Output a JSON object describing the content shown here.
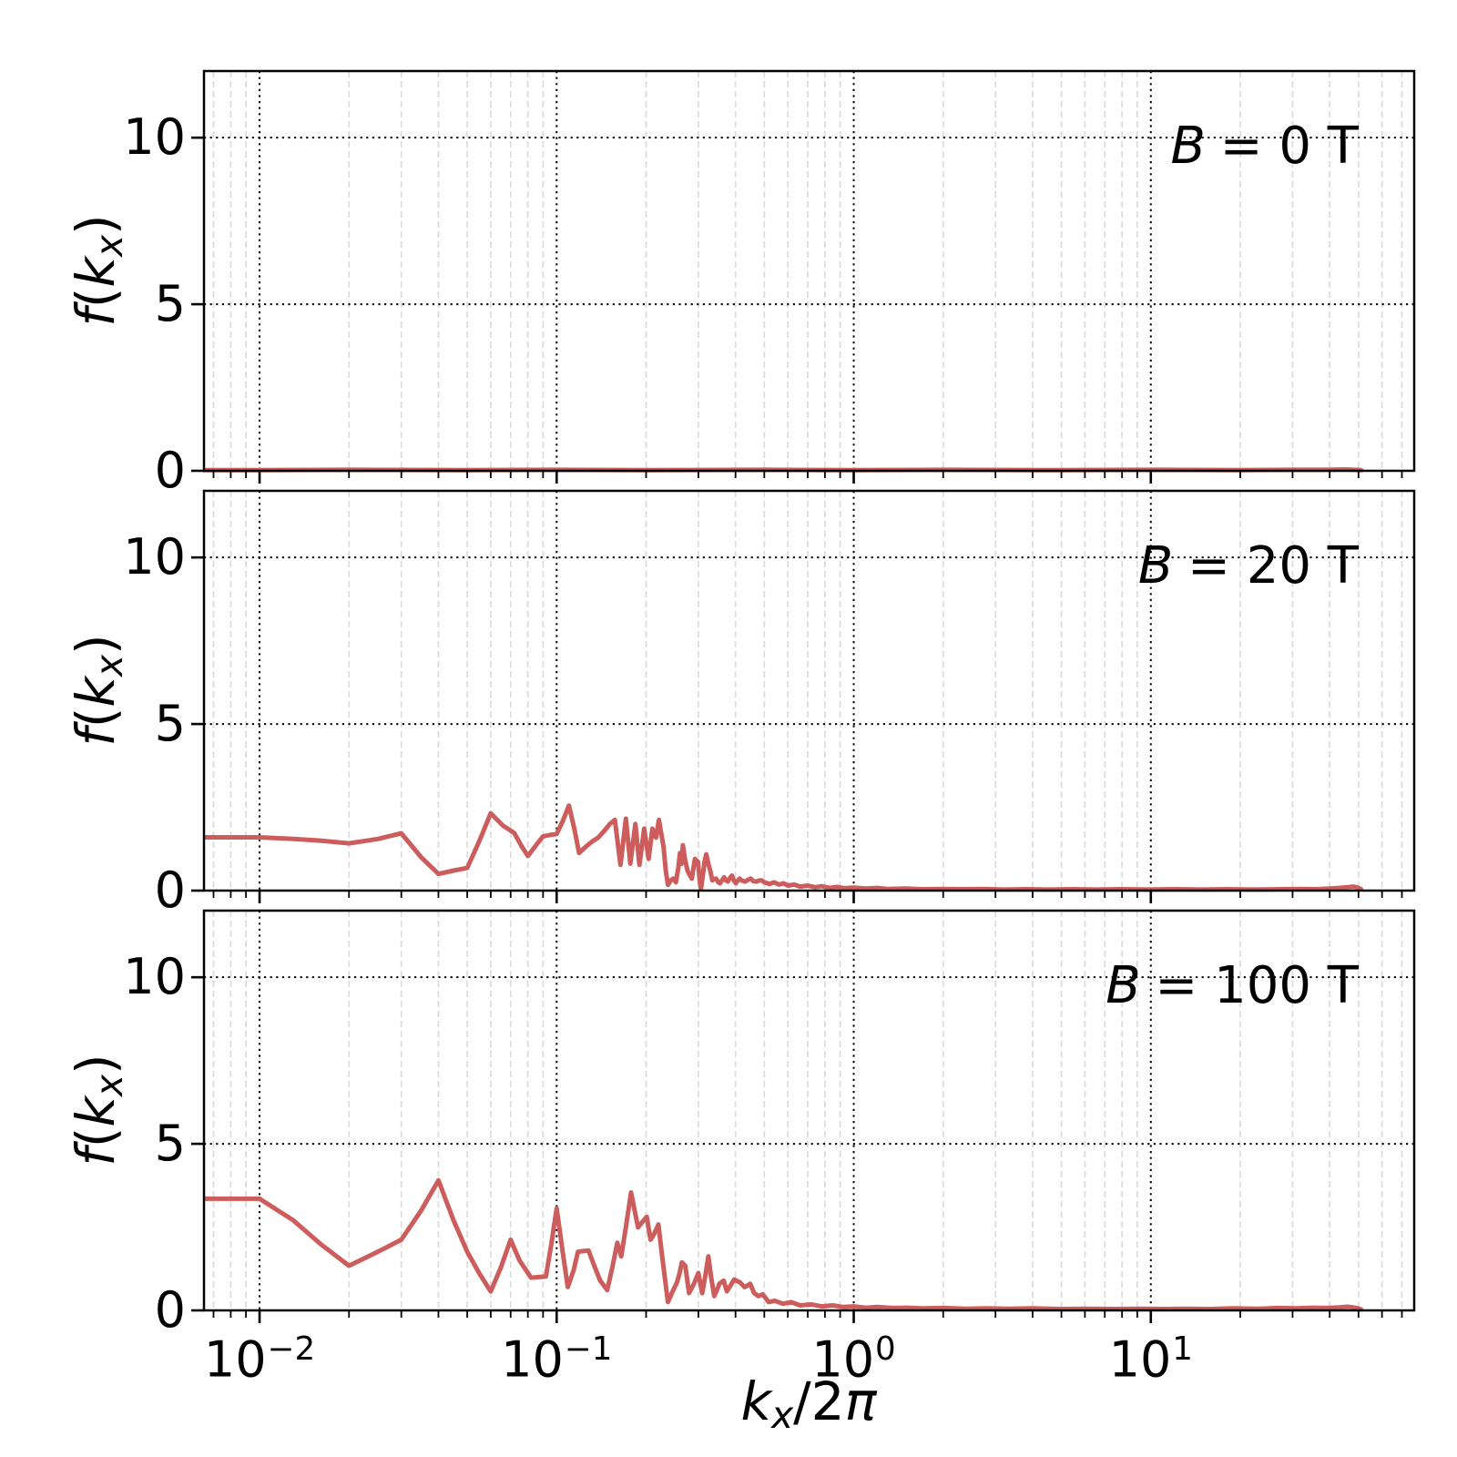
{
  "figure": {
    "background": "#ffffff",
    "axes_color": "#000000",
    "major_grid_color": "#000000",
    "minor_grid_color": "#dcdcdc",
    "line_color": "#cd5c5c"
  },
  "chart_data": {
    "type": "line",
    "title": "",
    "xlabel": "kx/2π",
    "xlabel_parts": {
      "k": "k",
      "sub": "x",
      "slash2": "/2",
      "pi": "π"
    },
    "ylabel": "f(kx)",
    "x_scale": "log",
    "xlim": [
      0.0065,
      77
    ],
    "ylim": [
      0,
      12
    ],
    "grid": {
      "major": "dotted",
      "minor": "dashed-light",
      "enabled": true
    },
    "legend_position": "none",
    "line_color": "#cd5c5c",
    "xticks": [
      {
        "base": "10",
        "exp": "−2",
        "value": 0.01
      },
      {
        "base": "10",
        "exp": "−1",
        "value": 0.1
      },
      {
        "base": "10",
        "exp": "0",
        "value": 1
      },
      {
        "base": "10",
        "exp": "1",
        "value": 10
      }
    ],
    "yticks": [
      {
        "label": "0",
        "value": 0
      },
      {
        "label": "5",
        "value": 5
      },
      {
        "label": "10",
        "value": 10
      }
    ],
    "panels": [
      {
        "label": "B = 0 T",
        "label_parts": {
          "var": "B",
          "rest": "= 0 T"
        },
        "ylabel_parts": {
          "f": "f",
          "open": "(",
          "k": "k",
          "sub": "x",
          "close": ")"
        },
        "points": [
          [
            0.0065,
            0.02
          ],
          [
            0.01,
            0.02
          ],
          [
            0.02,
            0.03
          ],
          [
            0.05,
            0.02
          ],
          [
            0.1,
            0.03
          ],
          [
            0.2,
            0.02
          ],
          [
            0.5,
            0.03
          ],
          [
            1,
            0.02
          ],
          [
            2,
            0.03
          ],
          [
            5,
            0.02
          ],
          [
            10,
            0.03
          ],
          [
            20,
            0.02
          ],
          [
            30,
            0.03
          ],
          [
            40,
            0.03
          ],
          [
            45,
            0.04
          ],
          [
            51,
            0.02
          ]
        ]
      },
      {
        "label": "B = 20 T",
        "label_parts": {
          "var": "B",
          "rest": "= 20 T"
        },
        "ylabel_parts": {
          "f": "f",
          "open": "(",
          "k": "k",
          "sub": "x",
          "close": ")"
        },
        "points": [
          [
            0.0065,
            1.6
          ],
          [
            0.008,
            1.6
          ],
          [
            0.01,
            1.6
          ],
          [
            0.013,
            1.55
          ],
          [
            0.016,
            1.5
          ],
          [
            0.02,
            1.42
          ],
          [
            0.025,
            1.55
          ],
          [
            0.03,
            1.72
          ],
          [
            0.035,
            1.0
          ],
          [
            0.04,
            0.5
          ],
          [
            0.045,
            0.6
          ],
          [
            0.05,
            0.68
          ],
          [
            0.055,
            1.5
          ],
          [
            0.06,
            2.32
          ],
          [
            0.066,
            1.95
          ],
          [
            0.072,
            1.73
          ],
          [
            0.076,
            1.35
          ],
          [
            0.08,
            1.04
          ],
          [
            0.085,
            1.35
          ],
          [
            0.09,
            1.63
          ],
          [
            0.095,
            1.67
          ],
          [
            0.1,
            1.7
          ],
          [
            0.105,
            2.1
          ],
          [
            0.11,
            2.55
          ],
          [
            0.115,
            1.8
          ],
          [
            0.119,
            1.13
          ],
          [
            0.123,
            1.25
          ],
          [
            0.127,
            1.36
          ],
          [
            0.132,
            1.48
          ],
          [
            0.138,
            1.59
          ],
          [
            0.145,
            1.8
          ],
          [
            0.151,
            2.0
          ],
          [
            0.157,
            2.12
          ],
          [
            0.164,
            0.77
          ],
          [
            0.171,
            2.16
          ],
          [
            0.177,
            0.81
          ],
          [
            0.184,
            2.0
          ],
          [
            0.19,
            0.77
          ],
          [
            0.197,
            1.86
          ],
          [
            0.204,
            0.95
          ],
          [
            0.21,
            1.86
          ],
          [
            0.216,
            1.59
          ],
          [
            0.221,
            2.12
          ],
          [
            0.225,
            1.7
          ],
          [
            0.229,
            1.31
          ],
          [
            0.233,
            0.6
          ],
          [
            0.237,
            0.17
          ],
          [
            0.242,
            0.3
          ],
          [
            0.247,
            0.36
          ],
          [
            0.252,
            0.25
          ],
          [
            0.257,
            0.7
          ],
          [
            0.26,
            1.13
          ],
          [
            0.263,
            0.8
          ],
          [
            0.266,
            1.36
          ],
          [
            0.271,
            0.9
          ],
          [
            0.276,
            0.59
          ],
          [
            0.281,
            0.45
          ],
          [
            0.285,
            0.36
          ],
          [
            0.289,
            0.7
          ],
          [
            0.292,
            0.95
          ],
          [
            0.296,
            0.9
          ],
          [
            0.299,
            0.86
          ],
          [
            0.303,
            0.3
          ],
          [
            0.306,
            0.05
          ],
          [
            0.311,
            0.5
          ],
          [
            0.315,
            0.9
          ],
          [
            0.319,
            1.09
          ],
          [
            0.324,
            0.8
          ],
          [
            0.329,
            0.59
          ],
          [
            0.334,
            0.31
          ],
          [
            0.339,
            0.35
          ],
          [
            0.344,
            0.36
          ],
          [
            0.35,
            0.25
          ],
          [
            0.355,
            0.22
          ],
          [
            0.361,
            0.32
          ],
          [
            0.366,
            0.4
          ],
          [
            0.372,
            0.3
          ],
          [
            0.377,
            0.27
          ],
          [
            0.383,
            0.38
          ],
          [
            0.389,
            0.45
          ],
          [
            0.395,
            0.3
          ],
          [
            0.401,
            0.22
          ],
          [
            0.407,
            0.3
          ],
          [
            0.413,
            0.36
          ],
          [
            0.42,
            0.3
          ],
          [
            0.431,
            0.27
          ],
          [
            0.44,
            0.32
          ],
          [
            0.45,
            0.36
          ],
          [
            0.46,
            0.28
          ],
          [
            0.47,
            0.27
          ],
          [
            0.48,
            0.3
          ],
          [
            0.49,
            0.31
          ],
          [
            0.5,
            0.25
          ],
          [
            0.52,
            0.2
          ],
          [
            0.54,
            0.25
          ],
          [
            0.56,
            0.18
          ],
          [
            0.58,
            0.22
          ],
          [
            0.6,
            0.15
          ],
          [
            0.63,
            0.18
          ],
          [
            0.66,
            0.12
          ],
          [
            0.7,
            0.15
          ],
          [
            0.74,
            0.1
          ],
          [
            0.78,
            0.13
          ],
          [
            0.83,
            0.08
          ],
          [
            0.88,
            0.11
          ],
          [
            0.93,
            0.07
          ],
          [
            1.0,
            0.09
          ],
          [
            1.1,
            0.06
          ],
          [
            1.2,
            0.08
          ],
          [
            1.3,
            0.05
          ],
          [
            1.5,
            0.06
          ],
          [
            1.7,
            0.04
          ],
          [
            2.0,
            0.05
          ],
          [
            2.3,
            0.04
          ],
          [
            2.7,
            0.05
          ],
          [
            3.2,
            0.03
          ],
          [
            3.8,
            0.04
          ],
          [
            4.5,
            0.03
          ],
          [
            5.5,
            0.04
          ],
          [
            6.5,
            0.03
          ],
          [
            8,
            0.04
          ],
          [
            10,
            0.03
          ],
          [
            12,
            0.04
          ],
          [
            15,
            0.03
          ],
          [
            18,
            0.04
          ],
          [
            22,
            0.03
          ],
          [
            27,
            0.04
          ],
          [
            32,
            0.05
          ],
          [
            36,
            0.04
          ],
          [
            40,
            0.06
          ],
          [
            43,
            0.08
          ],
          [
            46,
            0.1
          ],
          [
            48,
            0.12
          ],
          [
            50,
            0.08
          ],
          [
            51,
            0.04
          ]
        ]
      },
      {
        "label": "B = 100 T",
        "label_parts": {
          "var": "B",
          "rest": "= 100 T"
        },
        "ylabel_parts": {
          "f": "f",
          "open": "(",
          "k": "k",
          "sub": "x",
          "close": ")"
        },
        "points": [
          [
            0.0065,
            3.35
          ],
          [
            0.008,
            3.35
          ],
          [
            0.01,
            3.35
          ],
          [
            0.013,
            2.7
          ],
          [
            0.016,
            2.0
          ],
          [
            0.02,
            1.34
          ],
          [
            0.025,
            1.76
          ],
          [
            0.03,
            2.12
          ],
          [
            0.035,
            3.0
          ],
          [
            0.04,
            3.9
          ],
          [
            0.045,
            2.7
          ],
          [
            0.05,
            1.76
          ],
          [
            0.055,
            1.1
          ],
          [
            0.06,
            0.57
          ],
          [
            0.065,
            1.3
          ],
          [
            0.07,
            2.12
          ],
          [
            0.075,
            1.5
          ],
          [
            0.082,
            0.98
          ],
          [
            0.087,
            1.0
          ],
          [
            0.092,
            1.02
          ],
          [
            0.096,
            2.0
          ],
          [
            0.1,
            3.06
          ],
          [
            0.105,
            1.7
          ],
          [
            0.109,
            0.7
          ],
          [
            0.114,
            1.2
          ],
          [
            0.118,
            1.76
          ],
          [
            0.123,
            1.78
          ],
          [
            0.128,
            1.8
          ],
          [
            0.133,
            1.4
          ],
          [
            0.14,
            0.9
          ],
          [
            0.148,
            0.61
          ],
          [
            0.154,
            1.3
          ],
          [
            0.16,
            2.03
          ],
          [
            0.165,
            1.62
          ],
          [
            0.171,
            2.5
          ],
          [
            0.178,
            3.54
          ],
          [
            0.183,
            3.0
          ],
          [
            0.188,
            2.49
          ],
          [
            0.194,
            2.65
          ],
          [
            0.201,
            2.81
          ],
          [
            0.207,
            2.12
          ],
          [
            0.213,
            2.3
          ],
          [
            0.22,
            2.58
          ],
          [
            0.226,
            1.7
          ],
          [
            0.232,
            0.89
          ],
          [
            0.237,
            0.25
          ],
          [
            0.245,
            0.55
          ],
          [
            0.254,
            0.84
          ],
          [
            0.259,
            1.1
          ],
          [
            0.264,
            1.44
          ],
          [
            0.271,
            1.34
          ],
          [
            0.279,
            0.52
          ],
          [
            0.29,
            0.8
          ],
          [
            0.3,
            1.12
          ],
          [
            0.309,
            0.52
          ],
          [
            0.316,
            1.0
          ],
          [
            0.324,
            1.62
          ],
          [
            0.331,
            1.0
          ],
          [
            0.339,
            0.43
          ],
          [
            0.346,
            0.6
          ],
          [
            0.353,
            0.8
          ],
          [
            0.365,
            0.89
          ],
          [
            0.374,
            0.57
          ],
          [
            0.385,
            0.75
          ],
          [
            0.396,
            0.93
          ],
          [
            0.405,
            0.88
          ],
          [
            0.414,
            0.84
          ],
          [
            0.429,
            0.7
          ],
          [
            0.44,
            0.75
          ],
          [
            0.448,
            0.8
          ],
          [
            0.462,
            0.52
          ],
          [
            0.478,
            0.43
          ],
          [
            0.494,
            0.48
          ],
          [
            0.517,
            0.25
          ],
          [
            0.541,
            0.29
          ],
          [
            0.578,
            0.2
          ],
          [
            0.615,
            0.25
          ],
          [
            0.66,
            0.15
          ],
          [
            0.72,
            0.18
          ],
          [
            0.78,
            0.12
          ],
          [
            0.85,
            0.15
          ],
          [
            0.92,
            0.1
          ],
          [
            1.0,
            0.12
          ],
          [
            1.1,
            0.08
          ],
          [
            1.2,
            0.1
          ],
          [
            1.35,
            0.07
          ],
          [
            1.5,
            0.08
          ],
          [
            1.7,
            0.06
          ],
          [
            2.0,
            0.07
          ],
          [
            2.4,
            0.05
          ],
          [
            2.8,
            0.06
          ],
          [
            3.3,
            0.05
          ],
          [
            4.0,
            0.06
          ],
          [
            5.0,
            0.04
          ],
          [
            6.0,
            0.05
          ],
          [
            7.5,
            0.04
          ],
          [
            9.0,
            0.05
          ],
          [
            11,
            0.04
          ],
          [
            13,
            0.05
          ],
          [
            16,
            0.04
          ],
          [
            19,
            0.06
          ],
          [
            23,
            0.05
          ],
          [
            27,
            0.07
          ],
          [
            31,
            0.06
          ],
          [
            35,
            0.08
          ],
          [
            39,
            0.07
          ],
          [
            43,
            0.09
          ],
          [
            46,
            0.11
          ],
          [
            48,
            0.09
          ],
          [
            50,
            0.06
          ],
          [
            51,
            0.03
          ]
        ]
      }
    ]
  }
}
